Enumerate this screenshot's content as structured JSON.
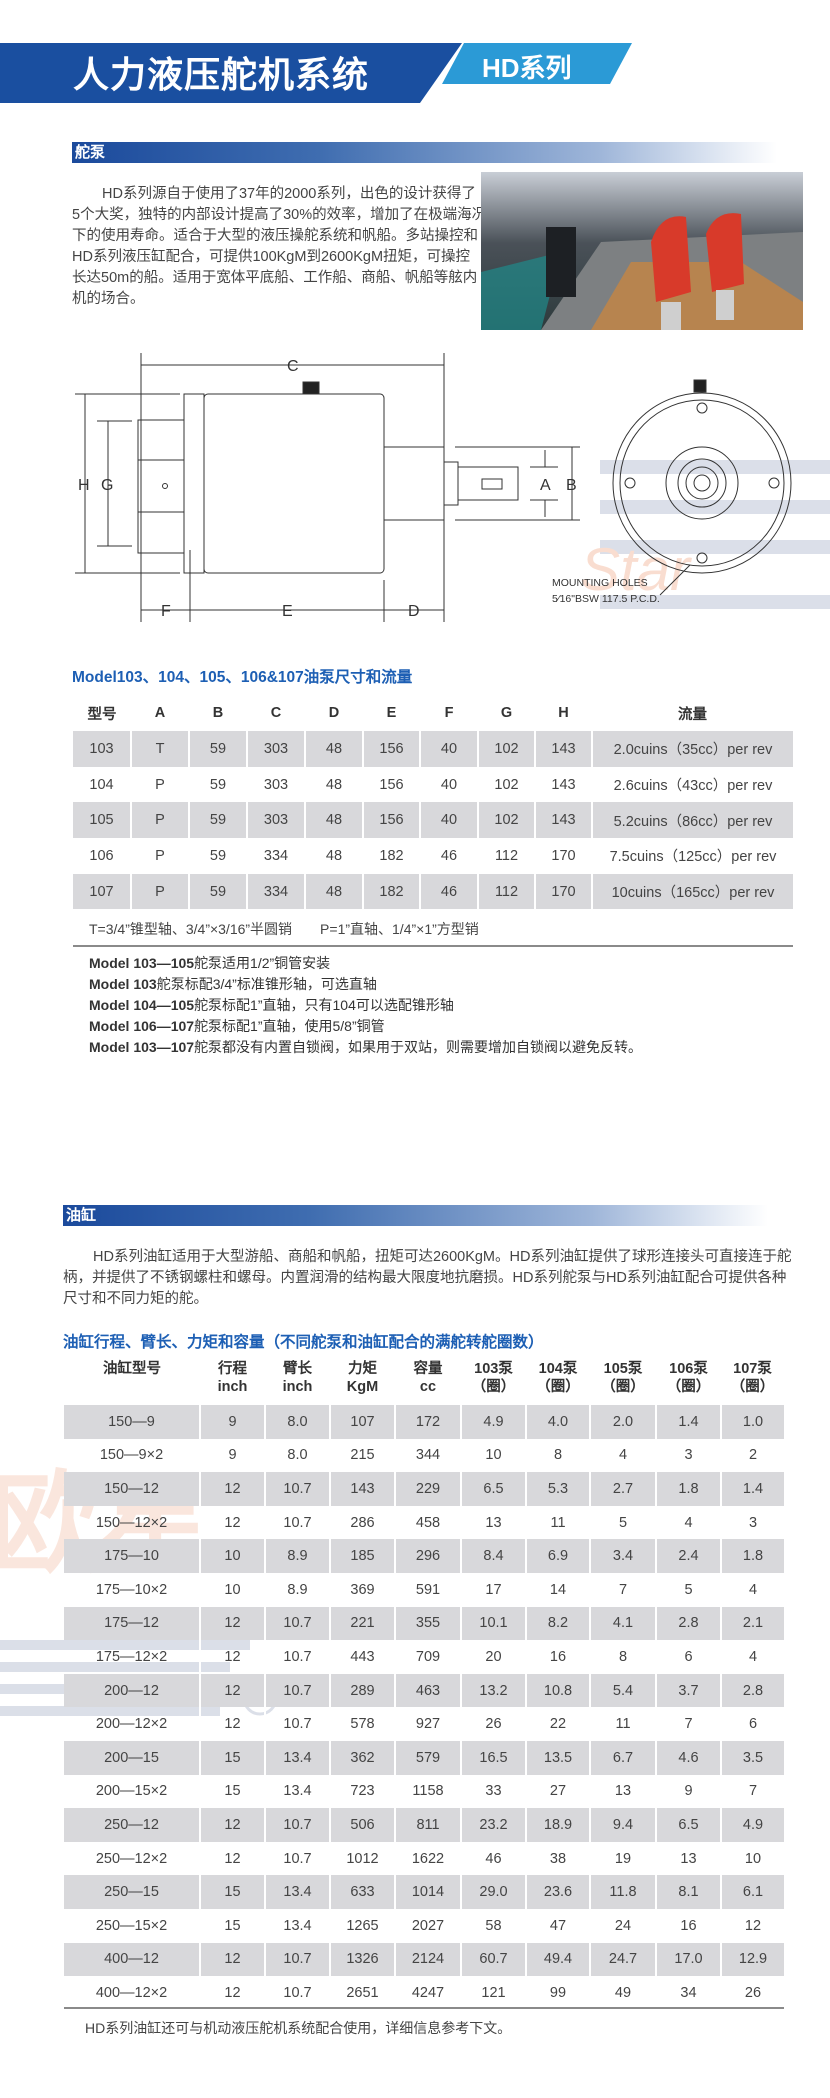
{
  "header": {
    "title": "人力液压舵机系统",
    "series": "HD系列",
    "colors": {
      "dark_blue": "#1a4fa0",
      "light_blue": "#2b9ad6"
    }
  },
  "pump_section": {
    "label": "舵泵",
    "paragraph_lines": [
      "HD系列源自于使用了37年的2000系列，出色的设计获得了",
      "5个大奖，独特的内部设计提高了30%的效率，增加了在极端海况",
      "下的使用寿命。适合于大型的液压操舵系统和帆船。多站操控和",
      "HD系列液压缸配合，可提供100KgM到2600KgM扭矩，可操控",
      "长达50m的船。适用于宽体平底船、工作船、商船、帆船等舷内",
      "机的场合。"
    ],
    "diagram": {
      "dim_labels": {
        "a": "A",
        "b": "B",
        "c": "C",
        "d": "D",
        "e": "E",
        "f": "F",
        "g": "G",
        "h": "H"
      },
      "mounting_line1": "MOUNTING  HOLES",
      "mounting_line2": "5⁄16\"BSW  117.5  P.C.D."
    },
    "table_heading": "Model103、104、105、106&107油泵尺寸和流量",
    "table": {
      "headers": [
        "型号",
        "A",
        "B",
        "C",
        "D",
        "E",
        "F",
        "G",
        "H",
        "流量"
      ],
      "rows": [
        [
          "103",
          "T",
          "59",
          "303",
          "48",
          "156",
          "40",
          "102",
          "143",
          "2.0cuins（35cc）per rev"
        ],
        [
          "104",
          "P",
          "59",
          "303",
          "48",
          "156",
          "40",
          "102",
          "143",
          "2.6cuins（43cc）per rev"
        ],
        [
          "105",
          "P",
          "59",
          "303",
          "48",
          "156",
          "40",
          "102",
          "143",
          "5.2cuins（86cc）per rev"
        ],
        [
          "106",
          "P",
          "59",
          "334",
          "48",
          "182",
          "46",
          "112",
          "170",
          "7.5cuins（125cc）per rev"
        ],
        [
          "107",
          "P",
          "59",
          "334",
          "48",
          "182",
          "46",
          "112",
          "170",
          "10cuins（165cc）per rev"
        ]
      ]
    },
    "legend_note": "T=3/4”锥型轴、3/4”×3/16”半圆销　　P=1”直轴、1/4”×1”方型销",
    "notes": [
      {
        "model": "Model 103—105",
        "text": "舵泵适用1/2”铜管安装"
      },
      {
        "model": "Model 103",
        "text": "舵泵标配3/4”标准锥形轴，可选直轴"
      },
      {
        "model": "Model 104—105",
        "text": "舵泵标配1”直轴，只有104可以选配锥形轴"
      },
      {
        "model": "Model 106—107",
        "text": "舵泵标配1”直轴，使用5/8”铜管"
      },
      {
        "model": "Model 103—107",
        "text": "舵泵都没有内置自锁阀，如果用于双站，则需要增加自锁阀以避免反转。"
      }
    ]
  },
  "cylinder_section": {
    "label": "油缸",
    "paragraph_lines": [
      "HD系列油缸适用于大型游船、商船和帆船，扭矩可达2600KgM。HD系列油缸提供了球形连接头可直接连于舵",
      "柄，并提供了不锈钢螺柱和螺母。内置润滑的结构最大限度地抗磨损。HD系列舵泵与HD系列油缸配合可提供各种",
      "尺寸和不同力矩的舵。"
    ],
    "table_heading": "油缸行程、臂长、力矩和容量（不同舵泵和油缸配合的满舵转舵圈数）",
    "table": {
      "headers": [
        [
          "油缸型号",
          ""
        ],
        [
          "行程",
          "inch"
        ],
        [
          "臂长",
          "inch"
        ],
        [
          "力矩",
          "KgM"
        ],
        [
          "容量",
          "cc"
        ],
        [
          "103泵",
          "（圈）"
        ],
        [
          "104泵",
          "（圈）"
        ],
        [
          "105泵",
          "（圈）"
        ],
        [
          "106泵",
          "（圈）"
        ],
        [
          "107泵",
          "（圈）"
        ]
      ],
      "rows": [
        [
          "150—9",
          "9",
          "8.0",
          "107",
          "172",
          "4.9",
          "4.0",
          "2.0",
          "1.4",
          "1.0"
        ],
        [
          "150—9×2",
          "9",
          "8.0",
          "215",
          "344",
          "10",
          "8",
          "4",
          "3",
          "2"
        ],
        [
          "150—12",
          "12",
          "10.7",
          "143",
          "229",
          "6.5",
          "5.3",
          "2.7",
          "1.8",
          "1.4"
        ],
        [
          "150—12×2",
          "12",
          "10.7",
          "286",
          "458",
          "13",
          "11",
          "5",
          "4",
          "3"
        ],
        [
          "175—10",
          "10",
          "8.9",
          "185",
          "296",
          "8.4",
          "6.9",
          "3.4",
          "2.4",
          "1.8"
        ],
        [
          "175—10×2",
          "10",
          "8.9",
          "369",
          "591",
          "17",
          "14",
          "7",
          "5",
          "4"
        ],
        [
          "175—12",
          "12",
          "10.7",
          "221",
          "355",
          "10.1",
          "8.2",
          "4.1",
          "2.8",
          "2.1"
        ],
        [
          "175—12×2",
          "12",
          "10.7",
          "443",
          "709",
          "20",
          "16",
          "8",
          "6",
          "4"
        ],
        [
          "200—12",
          "12",
          "10.7",
          "289",
          "463",
          "13.2",
          "10.8",
          "5.4",
          "3.7",
          "2.8"
        ],
        [
          "200—12×2",
          "12",
          "10.7",
          "578",
          "927",
          "26",
          "22",
          "11",
          "7",
          "6"
        ],
        [
          "200—15",
          "15",
          "13.4",
          "362",
          "579",
          "16.5",
          "13.5",
          "6.7",
          "4.6",
          "3.5"
        ],
        [
          "200—15×2",
          "15",
          "13.4",
          "723",
          "1158",
          "33",
          "27",
          "13",
          "9",
          "7"
        ],
        [
          "250—12",
          "12",
          "10.7",
          "506",
          "811",
          "23.2",
          "18.9",
          "9.4",
          "6.5",
          "4.9"
        ],
        [
          "250—12×2",
          "12",
          "10.7",
          "1012",
          "1622",
          "46",
          "38",
          "19",
          "13",
          "10"
        ],
        [
          "250—15",
          "15",
          "13.4",
          "633",
          "1014",
          "29.0",
          "23.6",
          "11.8",
          "8.1",
          "6.1"
        ],
        [
          "250—15×2",
          "15",
          "13.4",
          "1265",
          "2027",
          "58",
          "47",
          "24",
          "16",
          "12"
        ],
        [
          "400—12",
          "12",
          "10.7",
          "1326",
          "2124",
          "60.7",
          "49.4",
          "24.7",
          "17.0",
          "12.9"
        ],
        [
          "400—12×2",
          "12",
          "10.7",
          "2651",
          "4247",
          "121",
          "99",
          "49",
          "34",
          "26"
        ]
      ]
    },
    "footer_note": "HD系列油缸还可与机动液压舵机系统配合使用，详细信息参考下文。"
  },
  "watermark": {
    "text_cn": "欧星",
    "text_en": "Star"
  }
}
